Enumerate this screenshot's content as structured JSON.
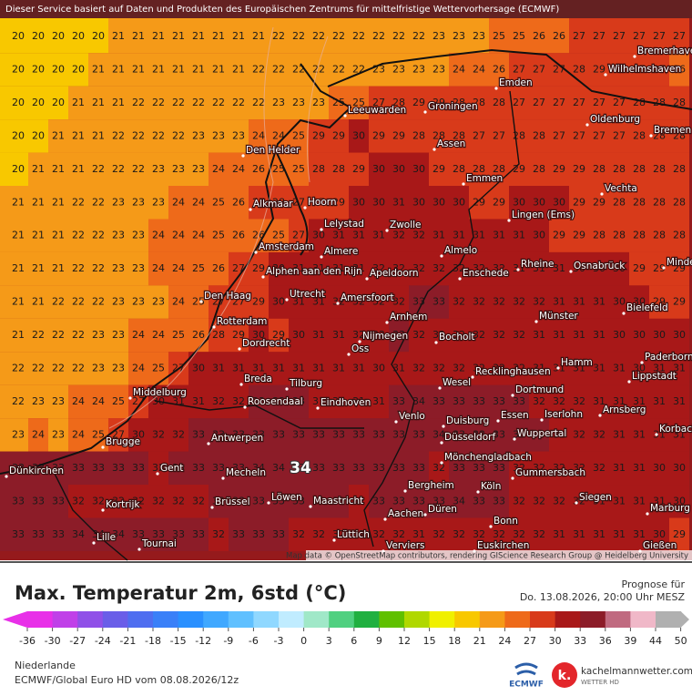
{
  "header": "Dieser Service basiert auf Daten und Produkten des Europäischen Zentrums für mittelfristige Wettervorhersage (ECMWF)",
  "attribution": "Map data © OpenStreetMap contributors, rendering GIScience Research Group @ Heidelberg University",
  "max_label": "34",
  "cities": [
    "Bremerhaven",
    "Wilhelmshaven",
    "Emden",
    "Leeuwarden",
    "Groningen",
    "Oldenburg",
    "Bremen",
    "Den Helder",
    "Assen",
    "Emmen",
    "Vechta",
    "Alkmaar",
    "Hoorn",
    "Lingen (Ems)",
    "Lelystad",
    "Zwolle",
    "Amsterdam",
    "Almere",
    "Almelo",
    "Rheine",
    "Osnabrück",
    "Minden",
    "Alphen aan den Rijn",
    "Apeldoorn",
    "Enschede",
    "Den Haag",
    "Utrecht",
    "Amersfoort",
    "Bielefeld",
    "Rotterdam",
    "Arnhem",
    "Münster",
    "Dordrecht",
    "Nijmegen",
    "Bocholt",
    "Oss",
    "Hamm",
    "Paderborn",
    "Breda",
    "Tilburg",
    "Wesel",
    "Recklinghausen",
    "Lippstadt",
    "Middelburg",
    "Roosendaal",
    "Eindhoven",
    "Dortmund",
    "Arnsberg",
    "Venlo",
    "Duisburg",
    "Essen",
    "Iserlohn",
    "Korbach",
    "Antwerpen",
    "Brugge",
    "Düsseldorf",
    "Wuppertal",
    "Mönchengladbach",
    "Dünkirchen",
    "Gent",
    "Mecheln",
    "Gummersbach",
    "Löwen",
    "Bergheim",
    "Köln",
    "Brüssel",
    "Maastricht",
    "Siegen",
    "Marburg",
    "Kortrijk",
    "Düren",
    "Aachen",
    "Bonn",
    "Lille",
    "Lüttich",
    "Tournai",
    "Euskirchen",
    "Verviers",
    "Gießen"
  ],
  "temperature_grid": [
    [
      20,
      20,
      20,
      20,
      20,
      21,
      21,
      21,
      21,
      21,
      21,
      21,
      21,
      22,
      22,
      22,
      22,
      22,
      22,
      22,
      22,
      23,
      23,
      23,
      25,
      25,
      26,
      26,
      27,
      27,
      27,
      27,
      27,
      27
    ],
    [
      20,
      20,
      20,
      20,
      21,
      21,
      21,
      21,
      21,
      21,
      21,
      21,
      22,
      22,
      22,
      22,
      22,
      22,
      23,
      23,
      23,
      23,
      24,
      24,
      26,
      27,
      27,
      27,
      28,
      29,
      27,
      27,
      27,
      26
    ],
    [
      20,
      20,
      20,
      21,
      21,
      21,
      22,
      22,
      22,
      22,
      22,
      22,
      22,
      23,
      23,
      23,
      25,
      25,
      27,
      28,
      29,
      29,
      28,
      28,
      28,
      27,
      27,
      27,
      27,
      27,
      27,
      28,
      28,
      28
    ],
    [
      20,
      20,
      21,
      21,
      21,
      22,
      22,
      22,
      22,
      23,
      23,
      23,
      24,
      24,
      25,
      29,
      29,
      30,
      29,
      29,
      28,
      28,
      28,
      27,
      27,
      28,
      28,
      27,
      27,
      27,
      27,
      28,
      28,
      28
    ],
    [
      20,
      21,
      21,
      21,
      22,
      22,
      22,
      23,
      23,
      23,
      24,
      24,
      26,
      25,
      25,
      28,
      28,
      29,
      30,
      30,
      30,
      29,
      28,
      28,
      28,
      29,
      28,
      29,
      29,
      28,
      28,
      28,
      28,
      28
    ],
    [
      21,
      21,
      21,
      22,
      22,
      23,
      23,
      23,
      24,
      24,
      25,
      26,
      27,
      28,
      27,
      27,
      29,
      30,
      30,
      31,
      30,
      30,
      30,
      29,
      29,
      30,
      30,
      30,
      29,
      29,
      28,
      28,
      28,
      28
    ],
    [
      21,
      21,
      21,
      22,
      22,
      23,
      23,
      24,
      24,
      24,
      25,
      26,
      26,
      25,
      27,
      30,
      31,
      31,
      31,
      32,
      32,
      31,
      31,
      31,
      31,
      31,
      30,
      29,
      29,
      28,
      28,
      28,
      28,
      28
    ],
    [
      21,
      21,
      21,
      22,
      22,
      23,
      23,
      24,
      24,
      25,
      26,
      27,
      29,
      30,
      31,
      31,
      31,
      31,
      32,
      32,
      32,
      32,
      32,
      32,
      32,
      31,
      31,
      31,
      30,
      30,
      30,
      29,
      29,
      29
    ],
    [
      21,
      21,
      22,
      22,
      22,
      23,
      23,
      23,
      24,
      25,
      27,
      27,
      29,
      30,
      31,
      31,
      32,
      32,
      32,
      32,
      33,
      33,
      32,
      32,
      32,
      32,
      32,
      31,
      31,
      31,
      30,
      30,
      29,
      29
    ],
    [
      21,
      22,
      22,
      22,
      23,
      23,
      24,
      24,
      25,
      26,
      28,
      29,
      30,
      29,
      30,
      31,
      31,
      32,
      32,
      33,
      32,
      32,
      32,
      32,
      32,
      32,
      31,
      31,
      31,
      31,
      30,
      30,
      30,
      30
    ],
    [
      22,
      22,
      22,
      22,
      23,
      23,
      24,
      25,
      27,
      30,
      31,
      31,
      31,
      31,
      31,
      31,
      31,
      31,
      30,
      31,
      32,
      32,
      32,
      32,
      32,
      32,
      31,
      31,
      31,
      31,
      31,
      30,
      31,
      31
    ],
    [
      22,
      23,
      23,
      24,
      24,
      25,
      27,
      30,
      31,
      31,
      32,
      32,
      33,
      33,
      33,
      31,
      31,
      31,
      31,
      33,
      34,
      33,
      33,
      33,
      33,
      33,
      32,
      32,
      32,
      31,
      31,
      31,
      31,
      31
    ],
    [
      23,
      24,
      23,
      24,
      25,
      27,
      30,
      32,
      32,
      33,
      33,
      33,
      33,
      33,
      33,
      33,
      33,
      33,
      33,
      33,
      33,
      34,
      33,
      33,
      33,
      33,
      33,
      32,
      32,
      32,
      31,
      31,
      31,
      31
    ],
    [
      33,
      33,
      33,
      33,
      33,
      33,
      33,
      32,
      33,
      33,
      33,
      33,
      34,
      34,
      33,
      33,
      33,
      33,
      33,
      33,
      33,
      32,
      33,
      33,
      33,
      32,
      32,
      32,
      32,
      32,
      31,
      31,
      30,
      30
    ],
    [
      33,
      33,
      33,
      32,
      32,
      32,
      32,
      32,
      32,
      32,
      33,
      33,
      33,
      33,
      33,
      33,
      33,
      32,
      33,
      33,
      33,
      33,
      34,
      33,
      33,
      32,
      32,
      32,
      32,
      31,
      31,
      31,
      31,
      30
    ],
    [
      33,
      33,
      33,
      34,
      34,
      34,
      33,
      33,
      33,
      33,
      32,
      33,
      33,
      33,
      32,
      32,
      32,
      32,
      32,
      32,
      31,
      32,
      32,
      32,
      32,
      32,
      32,
      31,
      31,
      31,
      31,
      31,
      30,
      29
    ]
  ],
  "footer": {
    "title": "Max. Temperatur 2m, 6std (°C)",
    "forecast_label": "Prognose für",
    "forecast_time": "Do. 13.08.2026, 20:00 Uhr MESZ",
    "region": "Niederlande",
    "model": "ECMWF/Global Euro HD vom  08.08.2026/12z",
    "ecmwf_logo": "ECMWF",
    "site": "kachelmannwetter.com",
    "site_sub": "WETTER HD"
  },
  "colorbar": {
    "ticks": [
      -36,
      -30,
      -27,
      -24,
      -21,
      -18,
      -15,
      -12,
      -9,
      -6,
      -3,
      0,
      3,
      6,
      9,
      12,
      15,
      18,
      21,
      24,
      27,
      30,
      33,
      36,
      39,
      44,
      50
    ],
    "colors": [
      "#e830e8",
      "#c040e8",
      "#9050e8",
      "#6a5ee8",
      "#4f6ef0",
      "#3a80f8",
      "#2a90ff",
      "#40a8ff",
      "#60c0ff",
      "#90d8ff",
      "#c0ecff",
      "#a0e8c8",
      "#50d080",
      "#20b040",
      "#60c000",
      "#b0d800",
      "#f0f000",
      "#f8c800",
      "#f59a18",
      "#ee6a1a",
      "#d83a1a",
      "#a81818",
      "#8c1c28",
      "#c06a80",
      "#f0b8c8",
      "#b0b0b0"
    ]
  }
}
